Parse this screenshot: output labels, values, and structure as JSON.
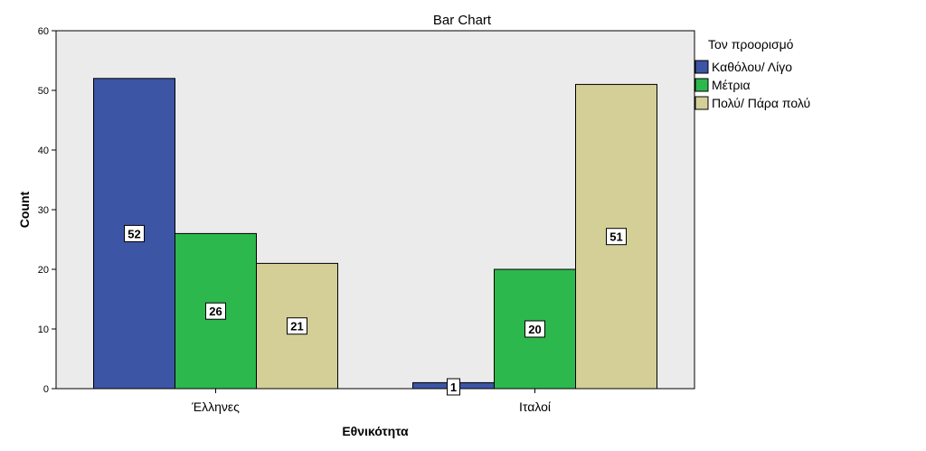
{
  "chart_data": {
    "type": "bar",
    "title": "Bar Chart",
    "xlabel": "Εθνικότητα",
    "ylabel": "Count",
    "categories": [
      "Έλληνες",
      "Ιταλοί"
    ],
    "ylim": [
      0,
      60
    ],
    "yticks": [
      0,
      10,
      20,
      30,
      40,
      50,
      60
    ],
    "grid": false,
    "legend": {
      "title": "Τον προορισμό",
      "position": "right"
    },
    "series": [
      {
        "name": "Καθόλου/ Λίγο",
        "values": [
          52,
          1
        ],
        "color": "#3c55a5"
      },
      {
        "name": "Μέτρια",
        "values": [
          26,
          20
        ],
        "color": "#2db84d"
      },
      {
        "name": "Πολύ/ Πάρα πολύ",
        "values": [
          21,
          51
        ],
        "color": "#d4cf97"
      }
    ]
  },
  "colors": {
    "plot_background": "#ebebeb",
    "bar_stroke": "#000000"
  }
}
